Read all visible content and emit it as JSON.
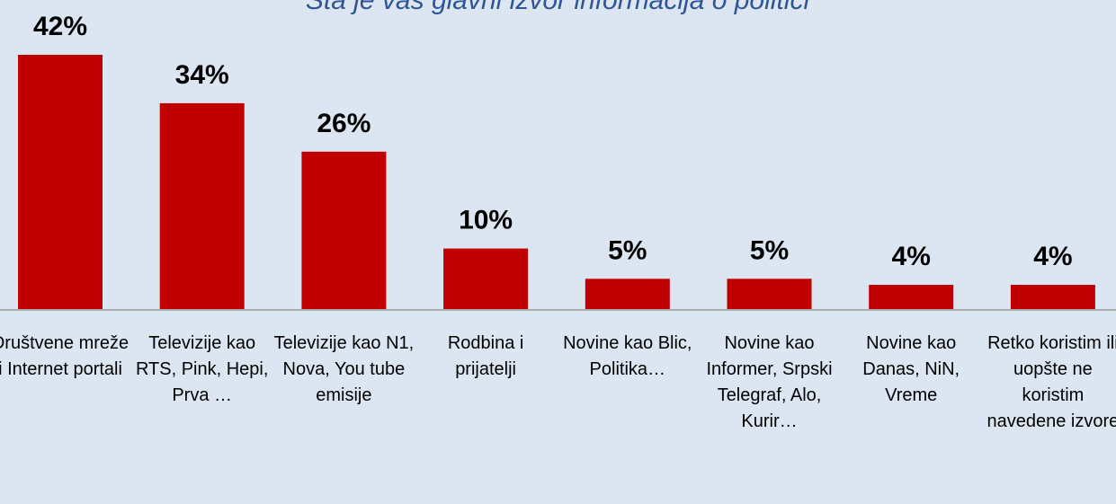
{
  "chart_data": {
    "type": "bar",
    "title": "Šta je vaš glavni izvor informacija o politici",
    "categories": [
      "Društvene mreže i Internet portali",
      "Televizije kao RTS, Pink, Hepi, Prva …",
      "Televizije kao N1, Nova, You tube emisije",
      "Rodbina i prijatelji",
      "Novine kao Blic, Politika…",
      "Novine kao Informer, Srpski Telegraf, Alo, Kurir…",
      "Novine kao Danas, NiN, Vreme",
      "Retko koristim ili uopšte ne koristim navedene izvore"
    ],
    "values": [
      42,
      34,
      26,
      10,
      5,
      5,
      4,
      4
    ],
    "value_labels": [
      "42%",
      "34%",
      "26%",
      "10%",
      "5%",
      "5%",
      "4%",
      "4%"
    ],
    "color": "#c00000"
  }
}
